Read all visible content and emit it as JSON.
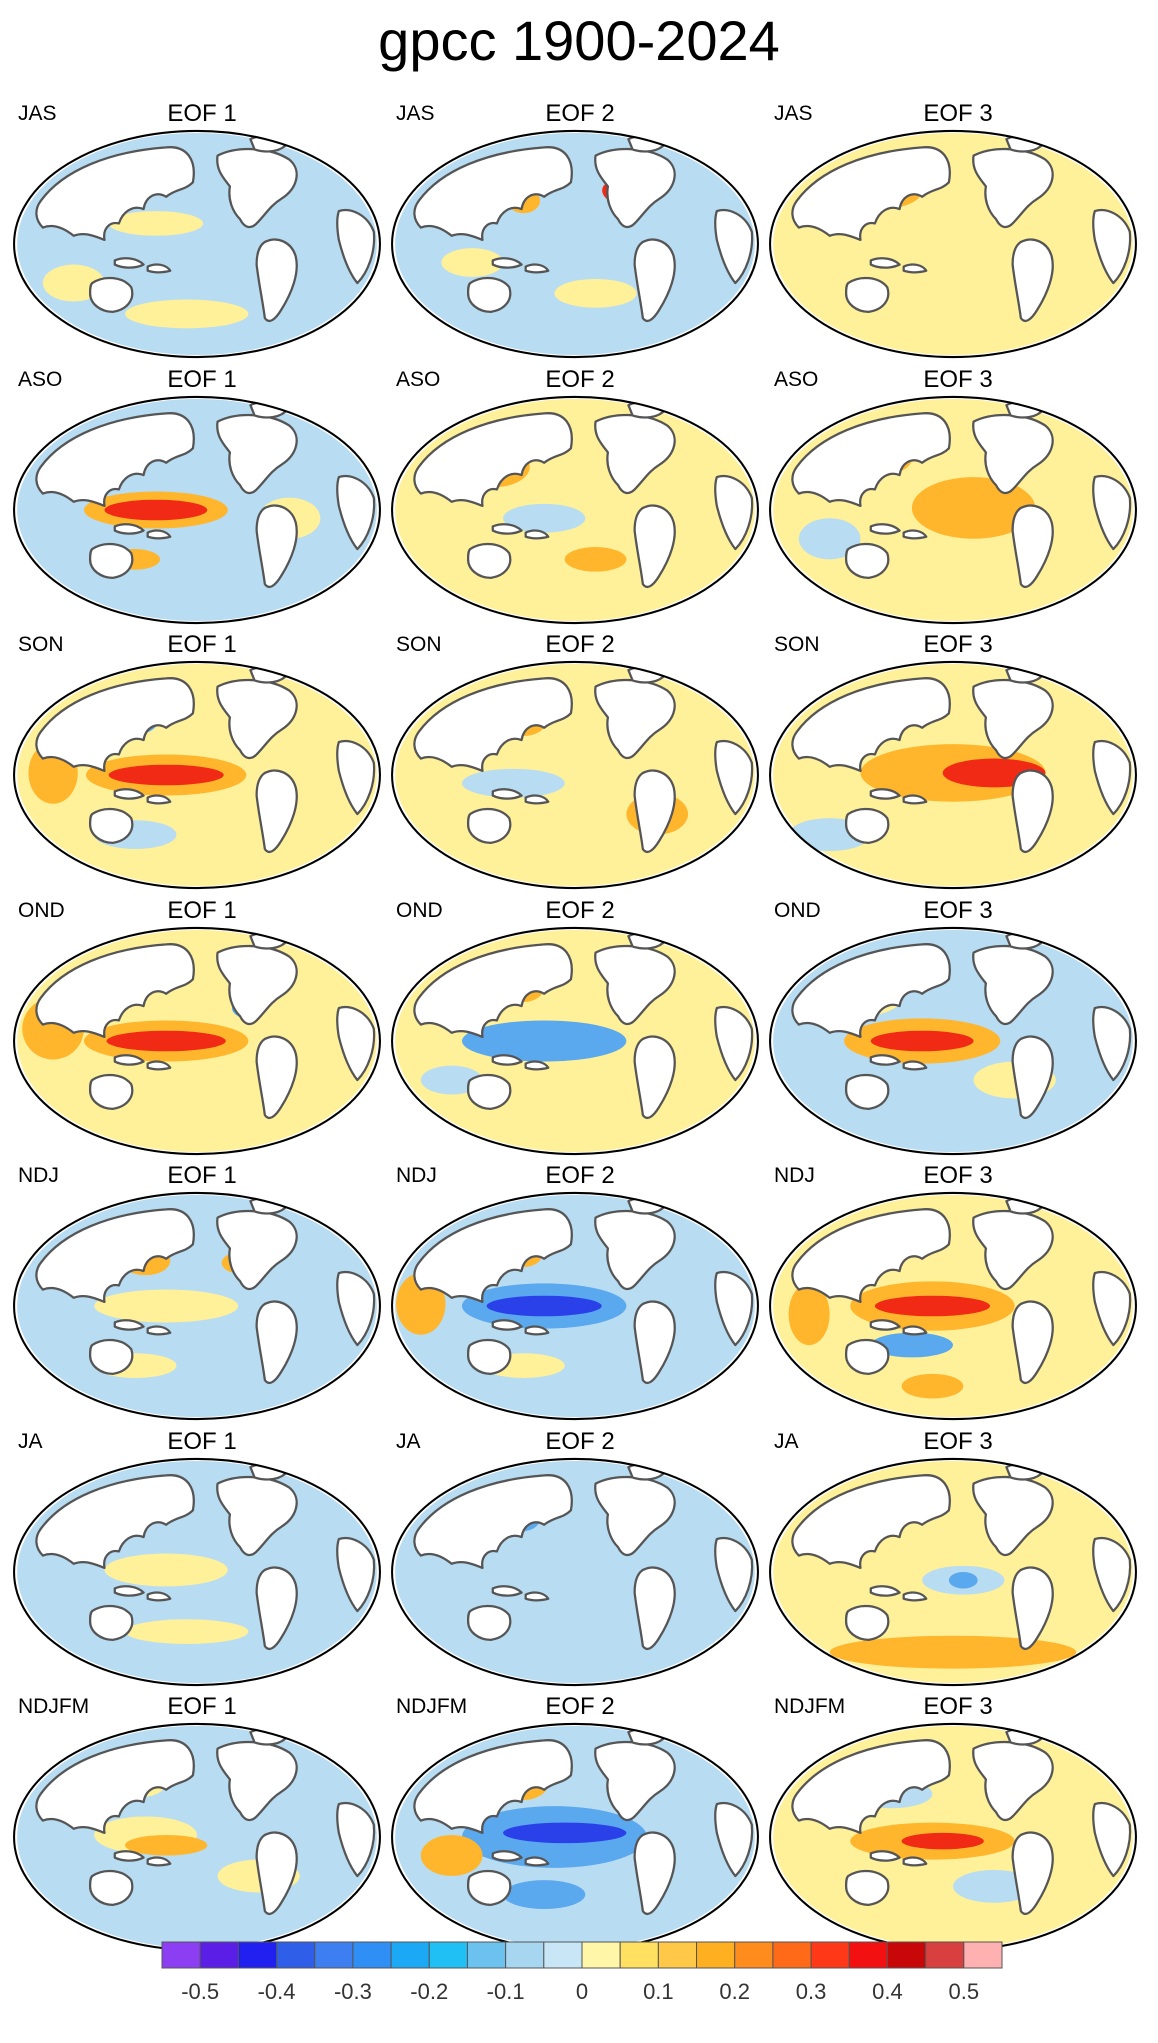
{
  "title": "gpcc 1900-2024",
  "rows": [
    {
      "season": "JAS",
      "panels": [
        "EOF 1",
        "EOF 2",
        "EOF 3"
      ]
    },
    {
      "season": "ASO",
      "panels": [
        "EOF 1",
        "EOF 2",
        "EOF 3"
      ]
    },
    {
      "season": "SON",
      "panels": [
        "EOF 1",
        "EOF 2",
        "EOF 3"
      ]
    },
    {
      "season": "OND",
      "panels": [
        "EOF 1",
        "EOF 2",
        "EOF 3"
      ]
    },
    {
      "season": "NDJ",
      "panels": [
        "EOF 1",
        "EOF 2",
        "EOF 3"
      ]
    },
    {
      "season": "JA",
      "panels": [
        "EOF 1",
        "EOF 2",
        "EOF 3"
      ]
    },
    {
      "season": "NDJFM",
      "panels": [
        "EOF 1",
        "EOF 2",
        "EOF 3"
      ]
    }
  ],
  "colorbar": {
    "colors": [
      "#8b3ef2",
      "#5a1ee6",
      "#2020f0",
      "#2f5ee8",
      "#3d7ef0",
      "#2f8ff5",
      "#1ba8f5",
      "#20c0f5",
      "#6cc2ee",
      "#a6d6f0",
      "#c8e6f5",
      "#fff6a8",
      "#ffe060",
      "#ffc846",
      "#ffb020",
      "#ff8c1c",
      "#ff6a18",
      "#ff3818",
      "#f21010",
      "#c80808",
      "#d84040",
      "#ffb0b0"
    ],
    "tick_labels": [
      "-0.5",
      "-0.4",
      "-0.3",
      "-0.2",
      "-0.1",
      "0",
      "0.1",
      "0.2",
      "0.3",
      "0.4",
      "0.5"
    ]
  },
  "legend_colors": {
    "strong_negative": "#2a40e8",
    "negative": "#5aa8ee",
    "weak_negative": "#b8dcf2",
    "weak_positive": "#fff09a",
    "positive": "#ffb62c",
    "strong_positive": "#f02a14",
    "land": "#ffffff",
    "coastline": "#555555"
  }
}
